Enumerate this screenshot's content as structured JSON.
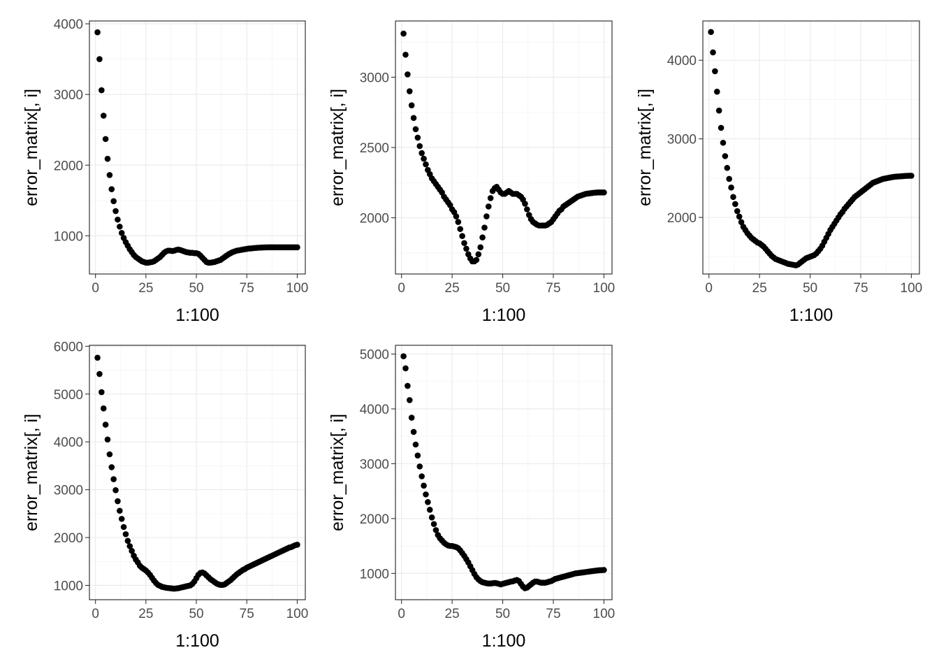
{
  "chart_data": [
    {
      "type": "scatter",
      "title": "",
      "xlabel": "1:100",
      "ylabel": "error_matrix[, i]",
      "xlim": [
        -3,
        104
      ],
      "ylim": [
        460,
        4040
      ],
      "xticks": [
        0,
        25,
        50,
        75,
        100
      ],
      "yticks": [
        1000,
        2000,
        3000,
        4000
      ],
      "x_start": 1,
      "y": [
        3880,
        3500,
        3060,
        2700,
        2370,
        2090,
        1860,
        1660,
        1490,
        1350,
        1230,
        1130,
        1040,
        970,
        910,
        860,
        810,
        770,
        730,
        700,
        680,
        660,
        640,
        630,
        620,
        620,
        625,
        630,
        640,
        660,
        680,
        700,
        730,
        760,
        780,
        790,
        790,
        785,
        790,
        800,
        805,
        800,
        790,
        780,
        770,
        765,
        760,
        760,
        755,
        755,
        745,
        720,
        690,
        660,
        630,
        620,
        620,
        625,
        630,
        640,
        650,
        660,
        680,
        700,
        720,
        740,
        755,
        770,
        780,
        790,
        795,
        800,
        805,
        810,
        815,
        820,
        822,
        825,
        828,
        830,
        832,
        834,
        835,
        836,
        837,
        838,
        838,
        838,
        838,
        838,
        838,
        838,
        838,
        838,
        838,
        838,
        838,
        838,
        838,
        838
      ]
    },
    {
      "type": "scatter",
      "title": "",
      "xlabel": "1:100",
      "ylabel": "error_matrix[, i]",
      "xlim": [
        -3,
        104
      ],
      "ylim": [
        1600,
        3400
      ],
      "xticks": [
        0,
        25,
        50,
        75,
        100
      ],
      "yticks": [
        2000,
        2500,
        3000
      ],
      "x_start": 1,
      "y": [
        3310,
        3160,
        3020,
        2900,
        2800,
        2710,
        2630,
        2570,
        2510,
        2460,
        2420,
        2380,
        2340,
        2310,
        2280,
        2260,
        2240,
        2220,
        2200,
        2180,
        2150,
        2130,
        2110,
        2090,
        2060,
        2040,
        2010,
        1970,
        1920,
        1870,
        1820,
        1780,
        1740,
        1710,
        1690,
        1690,
        1700,
        1740,
        1790,
        1860,
        1930,
        2010,
        2080,
        2140,
        2190,
        2210,
        2220,
        2200,
        2180,
        2170,
        2170,
        2180,
        2190,
        2180,
        2170,
        2170,
        2170,
        2160,
        2150,
        2130,
        2100,
        2060,
        2020,
        1990,
        1970,
        1960,
        1950,
        1945,
        1945,
        1945,
        1945,
        1950,
        1960,
        1970,
        1990,
        2010,
        2030,
        2050,
        2060,
        2080,
        2090,
        2100,
        2110,
        2120,
        2130,
        2140,
        2150,
        2155,
        2160,
        2165,
        2170,
        2172,
        2174,
        2176,
        2178,
        2179,
        2180,
        2180,
        2180,
        2180
      ]
    },
    {
      "type": "scatter",
      "title": "",
      "xlabel": "1:100",
      "ylabel": "error_matrix[, i]",
      "xlim": [
        -3,
        104
      ],
      "ylim": [
        1280,
        4500
      ],
      "xticks": [
        0,
        25,
        50,
        75,
        100
      ],
      "yticks": [
        2000,
        3000,
        4000
      ],
      "x_start": 1,
      "y": [
        4360,
        4100,
        3860,
        3600,
        3360,
        3140,
        2950,
        2780,
        2630,
        2490,
        2380,
        2260,
        2170,
        2080,
        2010,
        1940,
        1880,
        1840,
        1800,
        1770,
        1740,
        1720,
        1700,
        1680,
        1670,
        1650,
        1630,
        1600,
        1570,
        1540,
        1510,
        1490,
        1470,
        1460,
        1450,
        1440,
        1430,
        1420,
        1410,
        1405,
        1400,
        1395,
        1390,
        1400,
        1420,
        1440,
        1460,
        1480,
        1490,
        1500,
        1510,
        1520,
        1540,
        1570,
        1600,
        1640,
        1690,
        1740,
        1790,
        1840,
        1880,
        1920,
        1960,
        2000,
        2040,
        2070,
        2110,
        2140,
        2170,
        2200,
        2230,
        2260,
        2280,
        2300,
        2320,
        2340,
        2360,
        2380,
        2400,
        2420,
        2440,
        2450,
        2460,
        2470,
        2480,
        2490,
        2495,
        2500,
        2505,
        2510,
        2515,
        2518,
        2520,
        2522,
        2524,
        2526,
        2528,
        2529,
        2530,
        2530
      ]
    },
    {
      "type": "scatter",
      "title": "",
      "xlabel": "1:100",
      "ylabel": "error_matrix[, i]",
      "xlim": [
        -3,
        104
      ],
      "ylim": [
        700,
        6020
      ],
      "xticks": [
        0,
        25,
        50,
        75,
        100
      ],
      "yticks": [
        1000,
        2000,
        3000,
        4000,
        5000,
        6000
      ],
      "x_start": 1,
      "y": [
        5760,
        5420,
        5040,
        4700,
        4360,
        4050,
        3740,
        3470,
        3220,
        2990,
        2760,
        2560,
        2390,
        2220,
        2070,
        1930,
        1820,
        1720,
        1620,
        1540,
        1480,
        1410,
        1370,
        1340,
        1310,
        1270,
        1220,
        1160,
        1100,
        1050,
        1010,
        990,
        970,
        960,
        950,
        945,
        940,
        935,
        930,
        935,
        940,
        950,
        960,
        970,
        980,
        990,
        1000,
        1030,
        1080,
        1150,
        1220,
        1260,
        1270,
        1250,
        1210,
        1170,
        1130,
        1100,
        1070,
        1040,
        1020,
        1010,
        1010,
        1020,
        1050,
        1080,
        1110,
        1150,
        1190,
        1230,
        1260,
        1290,
        1320,
        1340,
        1370,
        1390,
        1410,
        1430,
        1450,
        1470,
        1490,
        1510,
        1530,
        1550,
        1570,
        1590,
        1610,
        1630,
        1650,
        1670,
        1690,
        1710,
        1730,
        1750,
        1770,
        1790,
        1800,
        1820,
        1840,
        1850
      ]
    },
    {
      "type": "scatter",
      "title": "",
      "xlabel": "1:100",
      "ylabel": "error_matrix[, i]",
      "xlim": [
        -3,
        104
      ],
      "ylim": [
        520,
        5160
      ],
      "xticks": [
        0,
        25,
        50,
        75,
        100
      ],
      "yticks": [
        1000,
        2000,
        3000,
        4000,
        5000
      ],
      "x_start": 1,
      "y": [
        4960,
        4740,
        4420,
        4160,
        3840,
        3580,
        3350,
        3150,
        2950,
        2770,
        2600,
        2440,
        2300,
        2160,
        2020,
        1900,
        1790,
        1700,
        1640,
        1600,
        1560,
        1530,
        1510,
        1500,
        1500,
        1490,
        1480,
        1460,
        1420,
        1370,
        1320,
        1260,
        1200,
        1130,
        1060,
        990,
        930,
        890,
        860,
        840,
        830,
        820,
        815,
        815,
        820,
        825,
        820,
        810,
        800,
        810,
        820,
        830,
        840,
        850,
        855,
        870,
        880,
        860,
        810,
        760,
        730,
        740,
        770,
        800,
        830,
        850,
        850,
        840,
        830,
        830,
        830,
        840,
        850,
        860,
        880,
        900,
        910,
        920,
        930,
        940,
        950,
        960,
        970,
        980,
        990,
        1000,
        1005,
        1010,
        1015,
        1020,
        1025,
        1030,
        1035,
        1040,
        1045,
        1050,
        1055,
        1058,
        1060,
        1062
      ]
    }
  ]
}
